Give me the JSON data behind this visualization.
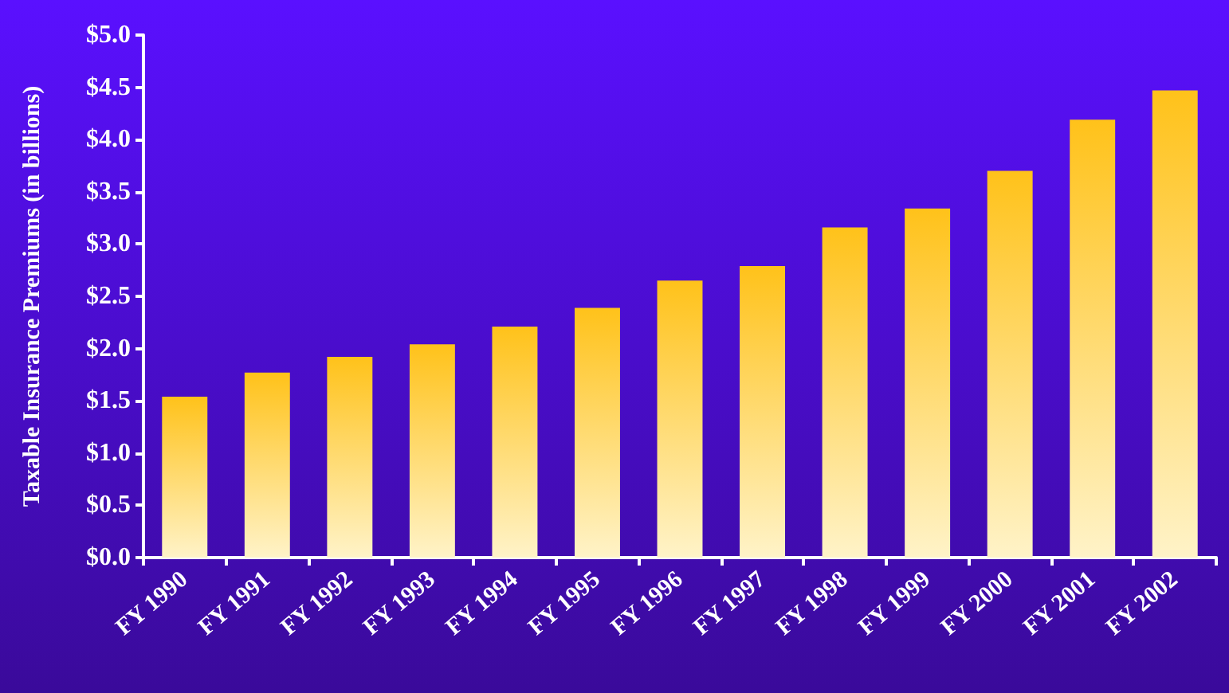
{
  "chart_data": {
    "type": "bar",
    "ylabel": "Taxable Insurance Premiums (in billions)",
    "categories": [
      "FY 1990",
      "FY 1991",
      "FY 1992",
      "FY 1993",
      "FY 1994",
      "FY 1995",
      "FY 1996",
      "FY 1997",
      "FY 1998",
      "FY 1999",
      "FY 2000",
      "FY 2001",
      "FY 2002"
    ],
    "values": [
      1.54,
      1.77,
      1.92,
      2.04,
      2.21,
      2.39,
      2.65,
      2.79,
      3.16,
      3.34,
      3.7,
      4.19,
      4.47
    ],
    "color": "#ffc21a",
    "ylim": [
      0,
      5
    ],
    "yticks": [
      {
        "value": 0,
        "label": "$0.0"
      },
      {
        "value": 0.5,
        "label": "$0.5"
      },
      {
        "value": 1,
        "label": "$1.0"
      },
      {
        "value": 1.5,
        "label": "$1.5"
      },
      {
        "value": 2,
        "label": "$2.0"
      },
      {
        "value": 2.5,
        "label": "$2.5"
      },
      {
        "value": 3,
        "label": "$3.0"
      },
      {
        "value": 3.5,
        "label": "$3.5"
      },
      {
        "value": 4,
        "label": "$4.0"
      },
      {
        "value": 4.5,
        "label": "$4.5"
      },
      {
        "value": 5,
        "label": "$5.0"
      }
    ],
    "grid": false
  }
}
